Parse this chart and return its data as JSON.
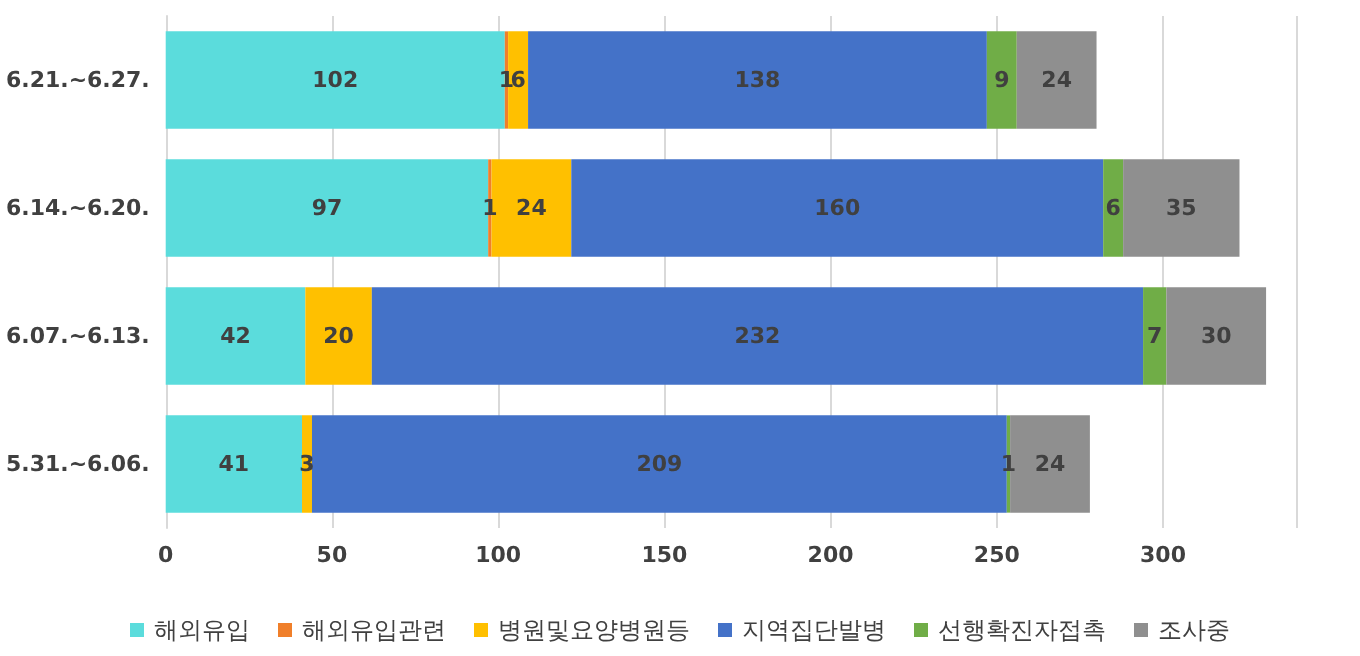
{
  "chart_data": {
    "type": "bar",
    "orientation": "horizontal",
    "stacked": true,
    "categories": [
      "6.21.~6.27.",
      "6.14.~6.20.",
      "6.07.~6.13.",
      "5.31.~6.06."
    ],
    "series": [
      {
        "name": "해외유입",
        "color": "#5bdcdc",
        "values": [
          102,
          97,
          42,
          41
        ],
        "value_labels": [
          "102",
          "97",
          "42",
          "41"
        ]
      },
      {
        "name": "해외유입관련",
        "color": "#f07f2a",
        "values": [
          1,
          1,
          null,
          null
        ],
        "value_labels": [
          "1",
          "1",
          null,
          null
        ]
      },
      {
        "name": "병원및요양병원등",
        "color": "#ffc000",
        "values": [
          6,
          24,
          20,
          3
        ],
        "value_labels": [
          "6",
          "24",
          "20",
          "3"
        ]
      },
      {
        "name": "지역집단발병",
        "color": "#4472c8",
        "values": [
          138,
          160,
          232,
          209
        ],
        "value_labels": [
          "138",
          "160",
          "232",
          "209"
        ]
      },
      {
        "name": "선행확진자접촉",
        "color": "#70ad47",
        "values": [
          9,
          6,
          7,
          1
        ],
        "value_labels": [
          "9",
          "6",
          "7",
          "1"
        ]
      },
      {
        "name": "조사중",
        "color": "#8f8f8f",
        "values": [
          24,
          35,
          30,
          24
        ],
        "value_labels": [
          "24",
          "35",
          "30",
          "24"
        ]
      }
    ],
    "xlim": [
      0,
      340
    ],
    "xticks": [
      0,
      50,
      100,
      150,
      200,
      250,
      300
    ],
    "grid": "x",
    "legend": "bottom"
  }
}
